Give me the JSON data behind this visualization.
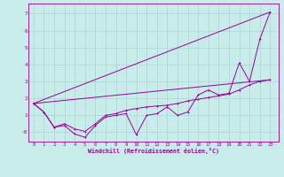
{
  "bg_color": "#c8ecea",
  "line_color": "#990099",
  "grid_color": "#aad4d2",
  "xlabel": "Windchill (Refroidissement éolien,°C)",
  "x_ticks": [
    0,
    1,
    2,
    3,
    4,
    5,
    6,
    7,
    8,
    9,
    10,
    11,
    12,
    13,
    14,
    15,
    16,
    17,
    18,
    19,
    20,
    21,
    22,
    23
  ],
  "y_ticks": [
    0,
    1,
    2,
    3,
    4,
    5,
    6,
    7
  ],
  "y_tick_labels": [
    "-0",
    "1",
    "2",
    "3",
    "4",
    "5",
    "6",
    "7"
  ],
  "xlim": [
    -0.5,
    23.8
  ],
  "ylim": [
    -0.55,
    7.6
  ],
  "line1_x": [
    0,
    1,
    2,
    3,
    4,
    5,
    6,
    7,
    8,
    9,
    10,
    11,
    12,
    13,
    14,
    15,
    16,
    17,
    18,
    19,
    20,
    21,
    22,
    23
  ],
  "line1_y": [
    1.7,
    1.2,
    0.3,
    0.4,
    -0.1,
    -0.3,
    0.4,
    0.9,
    1.0,
    1.1,
    -0.15,
    1.0,
    1.1,
    1.5,
    1.0,
    1.2,
    2.2,
    2.5,
    2.2,
    2.3,
    4.1,
    3.0,
    5.5,
    7.1
  ],
  "line2_x": [
    0,
    1,
    2,
    3,
    4,
    5,
    6,
    7,
    8,
    9,
    10,
    11,
    12,
    13,
    14,
    15,
    16,
    17,
    18,
    19,
    20,
    21,
    22,
    23
  ],
  "line2_y": [
    1.7,
    1.2,
    0.3,
    0.5,
    0.2,
    0.05,
    0.5,
    1.0,
    1.1,
    1.3,
    1.4,
    1.5,
    1.55,
    1.6,
    1.7,
    1.85,
    1.95,
    2.05,
    2.15,
    2.25,
    2.5,
    2.8,
    3.0,
    3.1
  ],
  "line3_x": [
    0,
    23
  ],
  "line3_y": [
    1.7,
    7.1
  ],
  "line4_x": [
    0,
    23
  ],
  "line4_y": [
    1.7,
    3.1
  ]
}
